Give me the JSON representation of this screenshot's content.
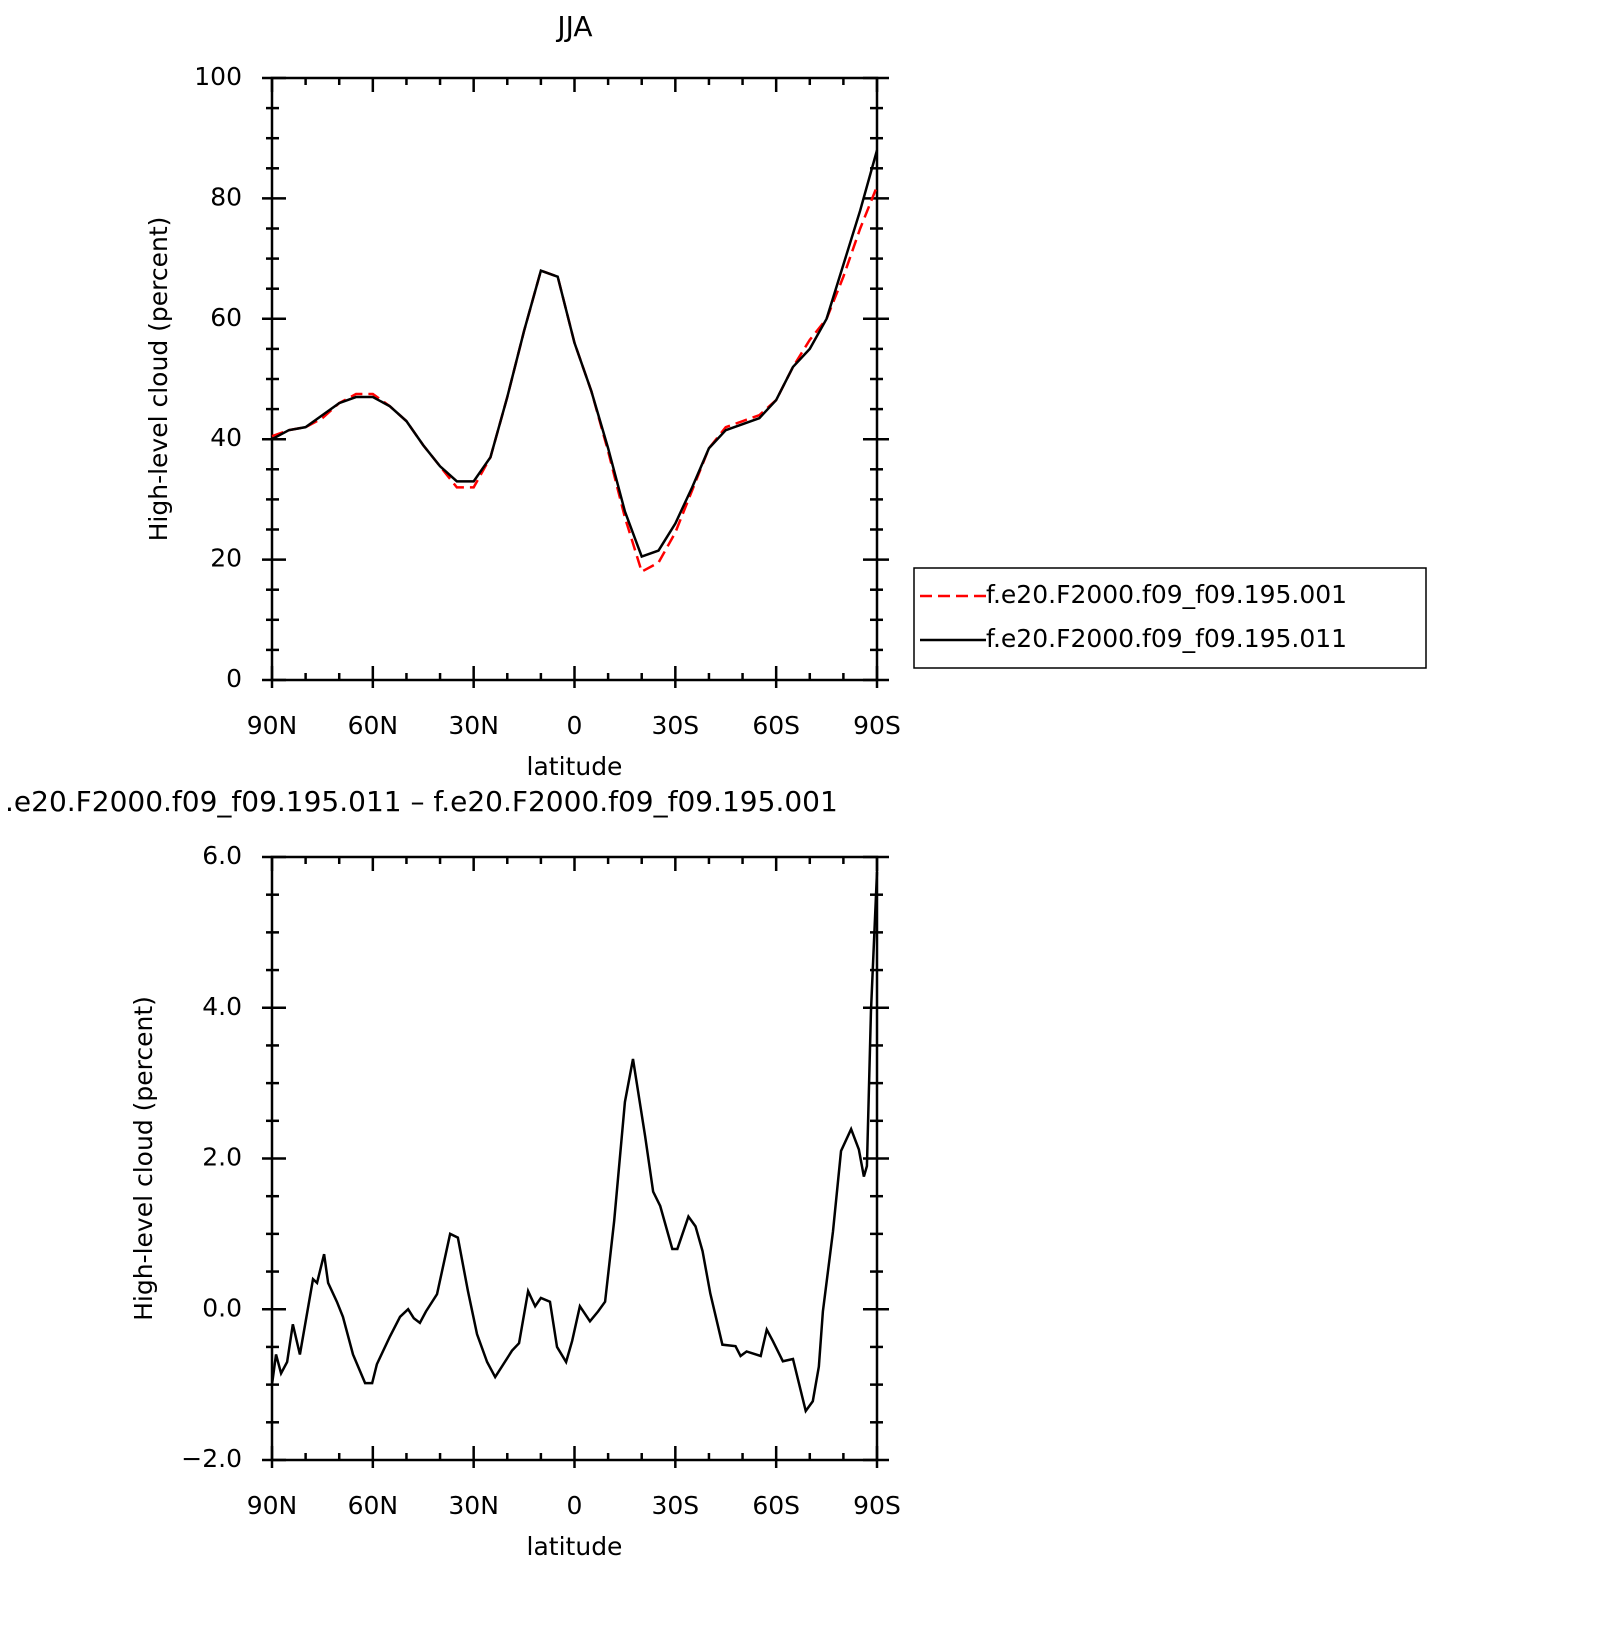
{
  "chart_data": [
    {
      "type": "line",
      "title": "JJA",
      "xlabel": "latitude",
      "ylabel": "High-level cloud (percent)",
      "x": [
        90,
        85,
        80,
        75,
        70,
        65,
        60,
        55,
        50,
        45,
        40,
        35,
        30,
        25,
        20,
        15,
        10,
        5,
        0,
        -5,
        -10,
        -15,
        -20,
        -25,
        -30,
        -35,
        -40,
        -45,
        -50,
        -55,
        -60,
        -65,
        -70,
        -75,
        -80,
        -85,
        -90
      ],
      "series": [
        {
          "name": "f.e20.F2000.f09_f09.195.001",
          "color": "#ff0000",
          "style": "dashed",
          "values": [
            40.5,
            41.5,
            42,
            43.5,
            46,
            47.5,
            47.5,
            45.5,
            43,
            39,
            35.5,
            32,
            32,
            37,
            47,
            58,
            68,
            67,
            56,
            48,
            38,
            27,
            18,
            19.5,
            24.5,
            31.5,
            38.5,
            42,
            43,
            44,
            46.5,
            52,
            56.5,
            60,
            67,
            75,
            82
          ]
        },
        {
          "name": "f.e20.F2000.f09_f09.195.011",
          "color": "#000000",
          "style": "solid",
          "values": [
            40,
            41.5,
            42,
            44,
            46,
            47,
            47,
            45.5,
            43,
            39,
            35.5,
            33,
            33,
            37,
            47,
            58,
            68,
            67,
            56,
            48,
            38.5,
            28,
            20.5,
            21.5,
            26,
            32,
            38.5,
            41.5,
            42.5,
            43.5,
            46.5,
            52,
            55,
            60,
            69,
            78,
            88
          ]
        }
      ],
      "xlim": [
        90,
        -90
      ],
      "xticks": [
        {
          "value": 90,
          "label": "90N"
        },
        {
          "value": 60,
          "label": "60N"
        },
        {
          "value": 30,
          "label": "30N"
        },
        0,
        {
          "value": -30,
          "label": "30S"
        },
        {
          "value": -60,
          "label": "60S"
        },
        {
          "value": -90,
          "label": "90S"
        }
      ],
      "ylim": [
        0,
        100
      ],
      "yticks": [
        0,
        20,
        40,
        60,
        80,
        100
      ],
      "legend": "right"
    },
    {
      "type": "line",
      "title": ".e20.F2000.f09_f09.195.011 – f.e20.F2000.f09_f09.195.001",
      "xlabel": "latitude",
      "ylabel": "High-level cloud (percent)",
      "x": [
        90,
        88.8,
        87.3,
        85.5,
        83.8,
        81.7,
        77.8,
        76.6,
        74.5,
        73.3,
        70.7,
        68.9,
        65.9,
        62.3,
        60.2,
        58.8,
        54.9,
        51.9,
        49.5,
        47.8,
        46,
        44.2,
        40.9,
        37,
        34.7,
        31.7,
        29,
        26,
        23.6,
        18.6,
        16.5,
        13.8,
        11.7,
        10,
        7.3,
        5.2,
        2.5,
        0.7,
        -1.6,
        -4.6,
        -7,
        -9.1,
        -11.8,
        -15,
        -17.4,
        -21,
        -23.4,
        -25.5,
        -29.1,
        -30.6,
        -33.9,
        -36,
        -38.1,
        -40.4,
        -44,
        -47.9,
        -49.4,
        -51.2,
        -55.4,
        -57.2,
        -59,
        -62,
        -65,
        -68.8,
        -70.9,
        -72.7,
        -73.9,
        -76.9,
        -79.3,
        -82.3,
        -84.6,
        -86.1,
        -87,
        -88.2,
        -90
      ],
      "series": [
        {
          "name": null,
          "color": "#000000",
          "style": "solid",
          "values": [
            -1.0,
            -0.6,
            -0.85,
            -0.7,
            -0.2,
            -0.6,
            0.4,
            0.35,
            0.73,
            0.35,
            0.1,
            -0.1,
            -0.6,
            -0.98,
            -0.98,
            -0.73,
            -0.36,
            -0.1,
            0.0,
            -0.12,
            -0.18,
            -0.03,
            0.2,
            1.0,
            0.95,
            0.24,
            -0.33,
            -0.7,
            -0.9,
            -0.55,
            -0.45,
            0.24,
            0.04,
            0.15,
            0.1,
            -0.5,
            -0.7,
            -0.42,
            0.04,
            -0.16,
            -0.03,
            0.1,
            1.17,
            2.75,
            3.32,
            2.3,
            1.56,
            1.37,
            0.8,
            0.8,
            1.23,
            1.1,
            0.77,
            0.21,
            -0.47,
            -0.49,
            -0.62,
            -0.56,
            -0.62,
            -0.27,
            -0.42,
            -0.69,
            -0.66,
            -1.35,
            -1.22,
            -0.76,
            -0.03,
            1.03,
            2.1,
            2.39,
            2.12,
            1.76,
            1.9,
            3.95,
            5.8
          ]
        }
      ],
      "xlim": [
        90,
        -90
      ],
      "xticks": [
        {
          "value": 90,
          "label": "90N"
        },
        {
          "value": 60,
          "label": "60N"
        },
        {
          "value": 30,
          "label": "30N"
        },
        0,
        {
          "value": -30,
          "label": "30S"
        },
        {
          "value": -60,
          "label": "60S"
        },
        {
          "value": -90,
          "label": "90S"
        }
      ],
      "ylim": [
        -2,
        6
      ],
      "yticks": [
        {
          "value": -2,
          "label": "−2.0"
        },
        {
          "value": 0,
          "label": "0.0"
        },
        {
          "value": 2,
          "label": "2.0"
        },
        {
          "value": 4,
          "label": "4.0"
        },
        {
          "value": 6,
          "label": "6.0"
        }
      ]
    }
  ]
}
